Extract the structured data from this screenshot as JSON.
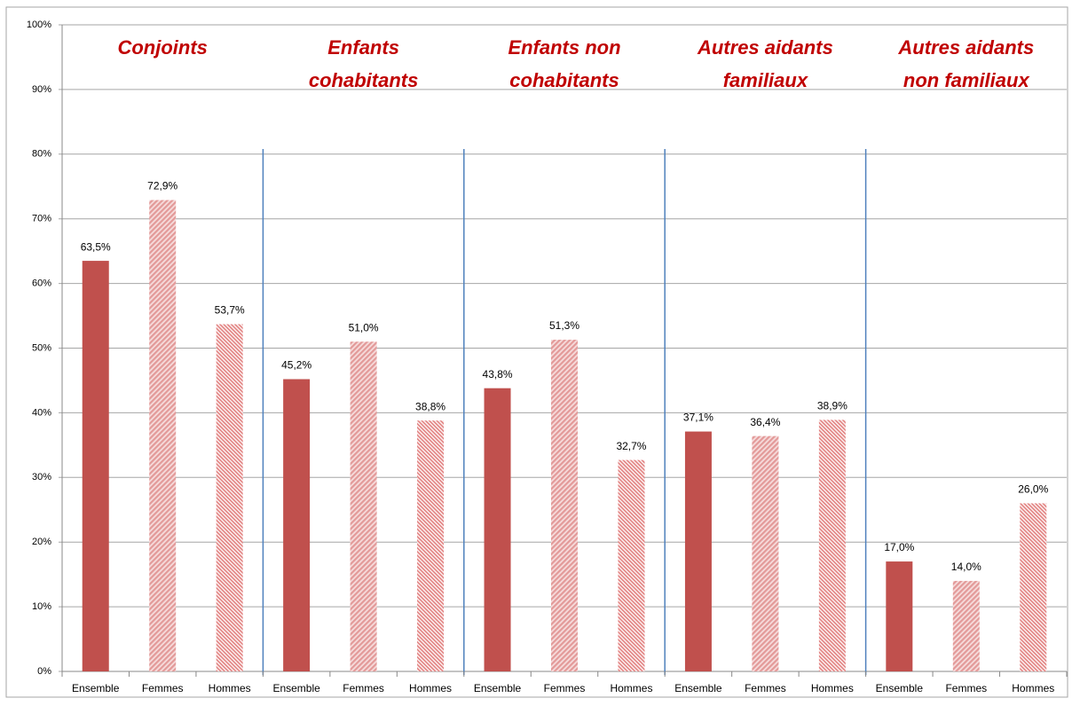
{
  "chart_data": {
    "type": "bar",
    "group_titles": [
      [
        "Conjoints"
      ],
      [
        "Enfants",
        "cohabitants"
      ],
      [
        "Enfants non",
        "cohabitants"
      ],
      [
        "Autres aidants",
        "familiaux"
      ],
      [
        "Autres aidants",
        "non familiaux"
      ]
    ],
    "title_color": "#c00000",
    "series": [
      {
        "name": "Ensemble",
        "color": "#c0504d",
        "pattern": "solid",
        "values": [
          63.5,
          45.2,
          43.8,
          37.1,
          17.0
        ],
        "value_labels": [
          "63,5%",
          "45,2%",
          "43,8%",
          "37,1%",
          "17,0%"
        ]
      },
      {
        "name": "Femmes",
        "color": "#e39a99",
        "pattern": "hatch-up",
        "values": [
          72.9,
          51.0,
          51.3,
          36.4,
          14.0
        ],
        "value_labels": [
          "72,9%",
          "51,0%",
          "51,3%",
          "36,4%",
          "14,0%"
        ]
      },
      {
        "name": "Hommes",
        "color": "#e39a99",
        "pattern": "hatch-down",
        "values": [
          53.7,
          38.8,
          32.7,
          38.9,
          26.0
        ],
        "value_labels": [
          "53,7%",
          "38,8%",
          "32,7%",
          "38,9%",
          "26,0%"
        ]
      }
    ],
    "ylim": [
      0,
      100
    ],
    "yticks": [
      {
        "value": 0,
        "label": "0%"
      },
      {
        "value": 10,
        "label": "10%"
      },
      {
        "value": 20,
        "label": "20%"
      },
      {
        "value": 30,
        "label": "30%"
      },
      {
        "value": 40,
        "label": "40%"
      },
      {
        "value": 50,
        "label": "50%"
      },
      {
        "value": 60,
        "label": "60%"
      },
      {
        "value": 70,
        "label": "70%"
      },
      {
        "value": 80,
        "label": "80%"
      },
      {
        "value": 90,
        "label": "90%"
      },
      {
        "value": 100,
        "label": "100%"
      }
    ],
    "grid": true
  }
}
